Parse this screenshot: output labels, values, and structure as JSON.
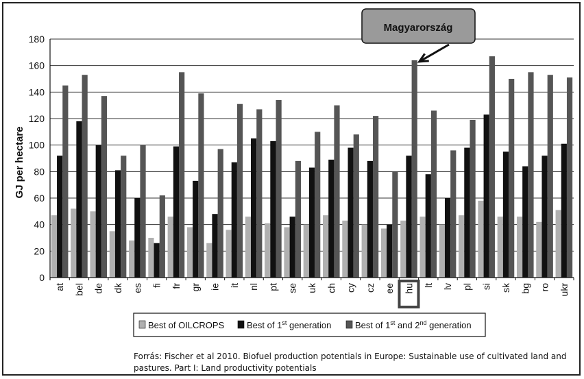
{
  "chart_data": {
    "type": "bar",
    "title": "",
    "xlabel": "",
    "ylabel": "GJ per hectare",
    "ylim": [
      0,
      180
    ],
    "yticks": [
      0,
      20,
      40,
      60,
      80,
      100,
      120,
      140,
      160,
      180
    ],
    "grid": "horizontal",
    "legend_position": "bottom",
    "categories": [
      "at",
      "bel",
      "de",
      "dk",
      "es",
      "fi",
      "fr",
      "gr",
      "ie",
      "it",
      "nl",
      "pt",
      "se",
      "uk",
      "ch",
      "cy",
      "cz",
      "ee",
      "hu",
      "lt",
      "lv",
      "pl",
      "si",
      "sk",
      "bg",
      "ro",
      "ukr"
    ],
    "series": [
      {
        "name": "Best of OILCROPS",
        "color": "#b0b0b0",
        "values": [
          47,
          52,
          50,
          35,
          28,
          30,
          46,
          38,
          26,
          36,
          46,
          41,
          38,
          40,
          47,
          43,
          40,
          37,
          43,
          46,
          40,
          47,
          58,
          46,
          46,
          42,
          51
        ]
      },
      {
        "name": "Best of 1st generation",
        "color": "#111111",
        "values": [
          92,
          118,
          100,
          81,
          60,
          26,
          99,
          73,
          48,
          87,
          105,
          103,
          46,
          83,
          89,
          98,
          88,
          40,
          92,
          78,
          60,
          98,
          123,
          95,
          84,
          92,
          101
        ]
      },
      {
        "name": "Best of 1st and 2nd generation",
        "color": "#555555",
        "values": [
          145,
          153,
          137,
          92,
          100,
          62,
          155,
          139,
          97,
          131,
          127,
          134,
          88,
          110,
          130,
          108,
          122,
          80,
          164,
          126,
          96,
          119,
          167,
          150,
          155,
          153,
          151
        ]
      }
    ],
    "legend": {
      "s1": "Best of OILCROPS",
      "s2_pre": "Best of 1",
      "s2_sup": "st",
      "s2_post": " generation",
      "s3_pre": "Best of 1",
      "s3_sup1": "st",
      "s3_mid": " and 2",
      "s3_sup2": "nd",
      "s3_post": " generation"
    },
    "annotation": {
      "text": "Magyarország",
      "target_category": "hu"
    },
    "highlighted_category": "hu"
  },
  "source_text": "Forrás: Fischer et al 2010. Biofuel production potentials in Europe: Sustainable use of cultivated land and pastures. Part I: Land productivity potentials"
}
